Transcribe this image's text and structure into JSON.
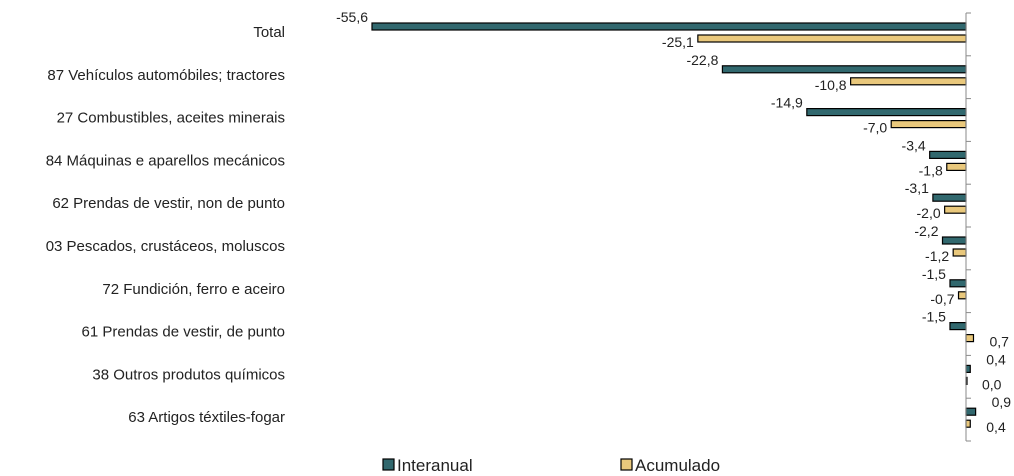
{
  "chart_data": {
    "type": "bar",
    "orientation": "horizontal",
    "categories": [
      "Total",
      "87 Vehículos automóbiles; tractores",
      "27 Combustibles, aceites minerais",
      "84 Máquinas e aparellos mecánicos",
      "62 Prendas de vestir, non de punto",
      "03 Pescados, crustáceos, moluscos",
      "72 Fundición, ferro e aceiro",
      "61 Prendas de vestir, de punto",
      "38 Outros produtos químicos",
      "63 Artigos téxtiles-fogar"
    ],
    "series": [
      {
        "name": "Interanual",
        "color": "#31686e",
        "values": [
          -55.6,
          -22.8,
          -14.9,
          -3.4,
          -3.1,
          -2.2,
          -1.5,
          -1.5,
          0.4,
          0.9
        ],
        "labels": [
          "-55,6",
          "-22,8",
          "-14,9",
          "-3,4",
          "-3,1",
          "-2,2",
          "-1,5",
          "-1,5",
          "0,4",
          "0,9"
        ]
      },
      {
        "name": "Acumulado",
        "color": "#e9c87c",
        "values": [
          -25.1,
          -10.8,
          -7.0,
          -1.8,
          -2.0,
          -1.2,
          -0.7,
          0.7,
          0.0,
          0.4
        ],
        "labels": [
          "-25,1",
          "-10,8",
          "-7,0",
          "-1,8",
          "-2,0",
          "-1,2",
          "-0,7",
          "0,7",
          "0,0",
          "0,4"
        ]
      }
    ],
    "xlim": [
      -56,
      1
    ],
    "grid": false,
    "legend": "bottom"
  }
}
